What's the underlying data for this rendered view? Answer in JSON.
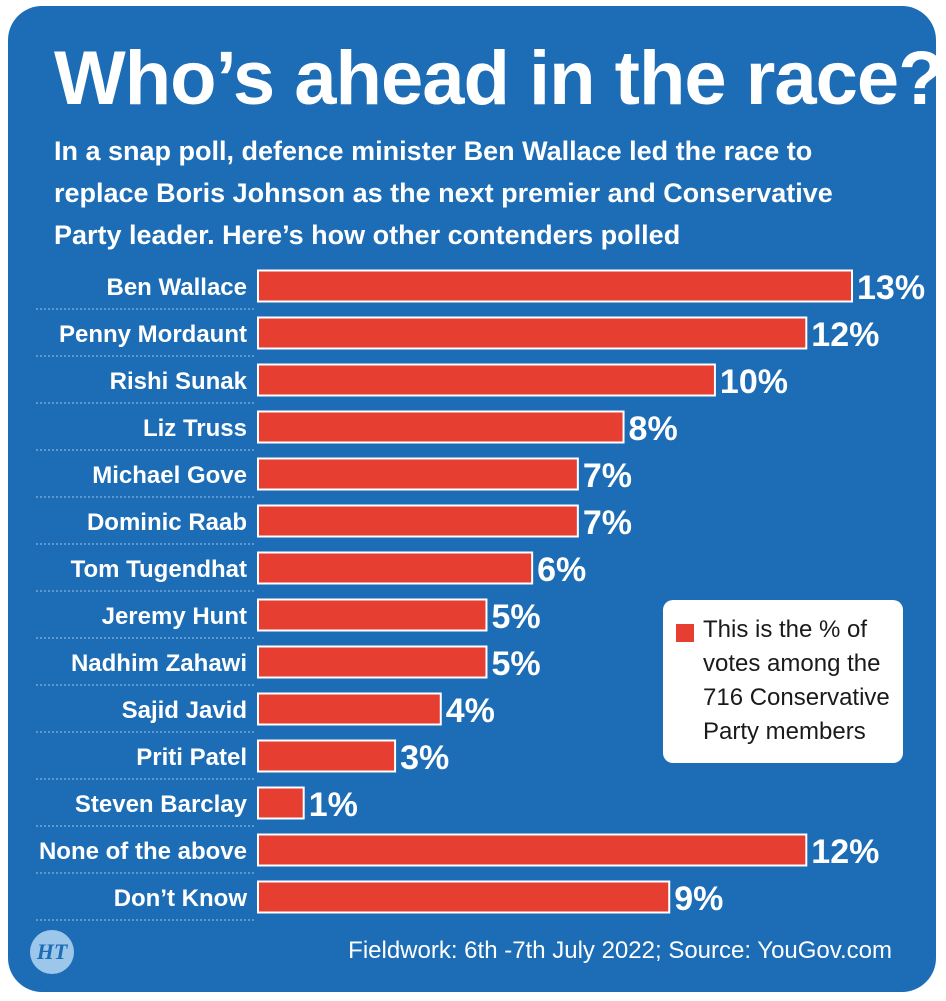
{
  "title": "Who’s ahead in the race?",
  "subtitle": "In a snap poll, defence minister Ben Wallace led the race to replace Boris Johnson as the next premier and Conservative Party leader. Here’s how other contenders polled",
  "legend": {
    "text": "This is the % of votes among the 716 Conservative Party members",
    "color": "#e63e30"
  },
  "footer": "Fieldwork: 6th -7th July 2022; Source: YouGov.com",
  "logo": "HT",
  "colors": {
    "background": "#1c6db5",
    "bar": "#e63e30",
    "bar_border": "#ffffff",
    "text": "#ffffff"
  },
  "chart_data": {
    "type": "bar",
    "orientation": "horizontal",
    "categories": [
      "Ben Wallace",
      "Penny Mordaunt",
      "Rishi Sunak",
      "Liz Truss",
      "Michael Gove",
      "Dominic Raab",
      "Tom Tugendhat",
      "Jeremy Hunt",
      "Nadhim Zahawi",
      "Sajid Javid",
      "Priti Patel",
      "Steven Barclay",
      "None of the above",
      "Don’t Know"
    ],
    "values": [
      13,
      12,
      10,
      8,
      7,
      7,
      6,
      5,
      5,
      4,
      3,
      1,
      12,
      9
    ],
    "value_labels": [
      "13%",
      "12%",
      "10%",
      "8%",
      "7%",
      "7%",
      "6%",
      "5%",
      "5%",
      "4%",
      "3%",
      "1%",
      "12%",
      "9%"
    ],
    "unit": "%",
    "xlim": [
      0,
      13
    ],
    "grid": false,
    "legend_position": "right"
  }
}
